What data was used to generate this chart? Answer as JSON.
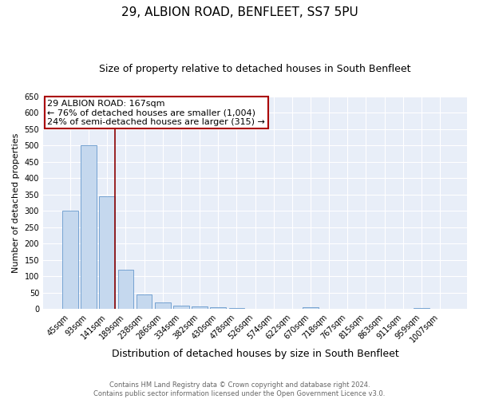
{
  "title": "29, ALBION ROAD, BENFLEET, SS7 5PU",
  "subtitle": "Size of property relative to detached houses in South Benfleet",
  "xlabel": "Distribution of detached houses by size in South Benfleet",
  "ylabel": "Number of detached properties",
  "categories": [
    "45sqm",
    "93sqm",
    "141sqm",
    "189sqm",
    "238sqm",
    "286sqm",
    "334sqm",
    "382sqm",
    "430sqm",
    "478sqm",
    "526sqm",
    "574sqm",
    "622sqm",
    "670sqm",
    "718sqm",
    "767sqm",
    "815sqm",
    "863sqm",
    "911sqm",
    "959sqm",
    "1007sqm"
  ],
  "values": [
    300,
    500,
    345,
    120,
    45,
    20,
    10,
    8,
    5,
    3,
    2,
    1,
    0,
    5,
    0,
    0,
    0,
    0,
    0,
    4,
    0
  ],
  "bar_color": "#c5d8ee",
  "bar_edge_color": "#6699cc",
  "vline_color": "#8b0000",
  "vline_pos": 2.42,
  "annotation_line1": "29 ALBION ROAD: 167sqm",
  "annotation_line2": "← 76% of detached houses are smaller (1,004)",
  "annotation_line3": "24% of semi-detached houses are larger (315) →",
  "annotation_box_color": "white",
  "annotation_box_edge_color": "#aa0000",
  "ylim": [
    0,
    650
  ],
  "yticks": [
    0,
    50,
    100,
    150,
    200,
    250,
    300,
    350,
    400,
    450,
    500,
    550,
    600,
    650
  ],
  "footnote": "Contains HM Land Registry data © Crown copyright and database right 2024.\nContains public sector information licensed under the Open Government Licence v3.0.",
  "background_color": "#e8eef8",
  "grid_color": "white",
  "title_fontsize": 11,
  "subtitle_fontsize": 9,
  "tick_fontsize": 7,
  "ylabel_fontsize": 8,
  "xlabel_fontsize": 9,
  "footnote_fontsize": 6,
  "annot_fontsize": 8
}
